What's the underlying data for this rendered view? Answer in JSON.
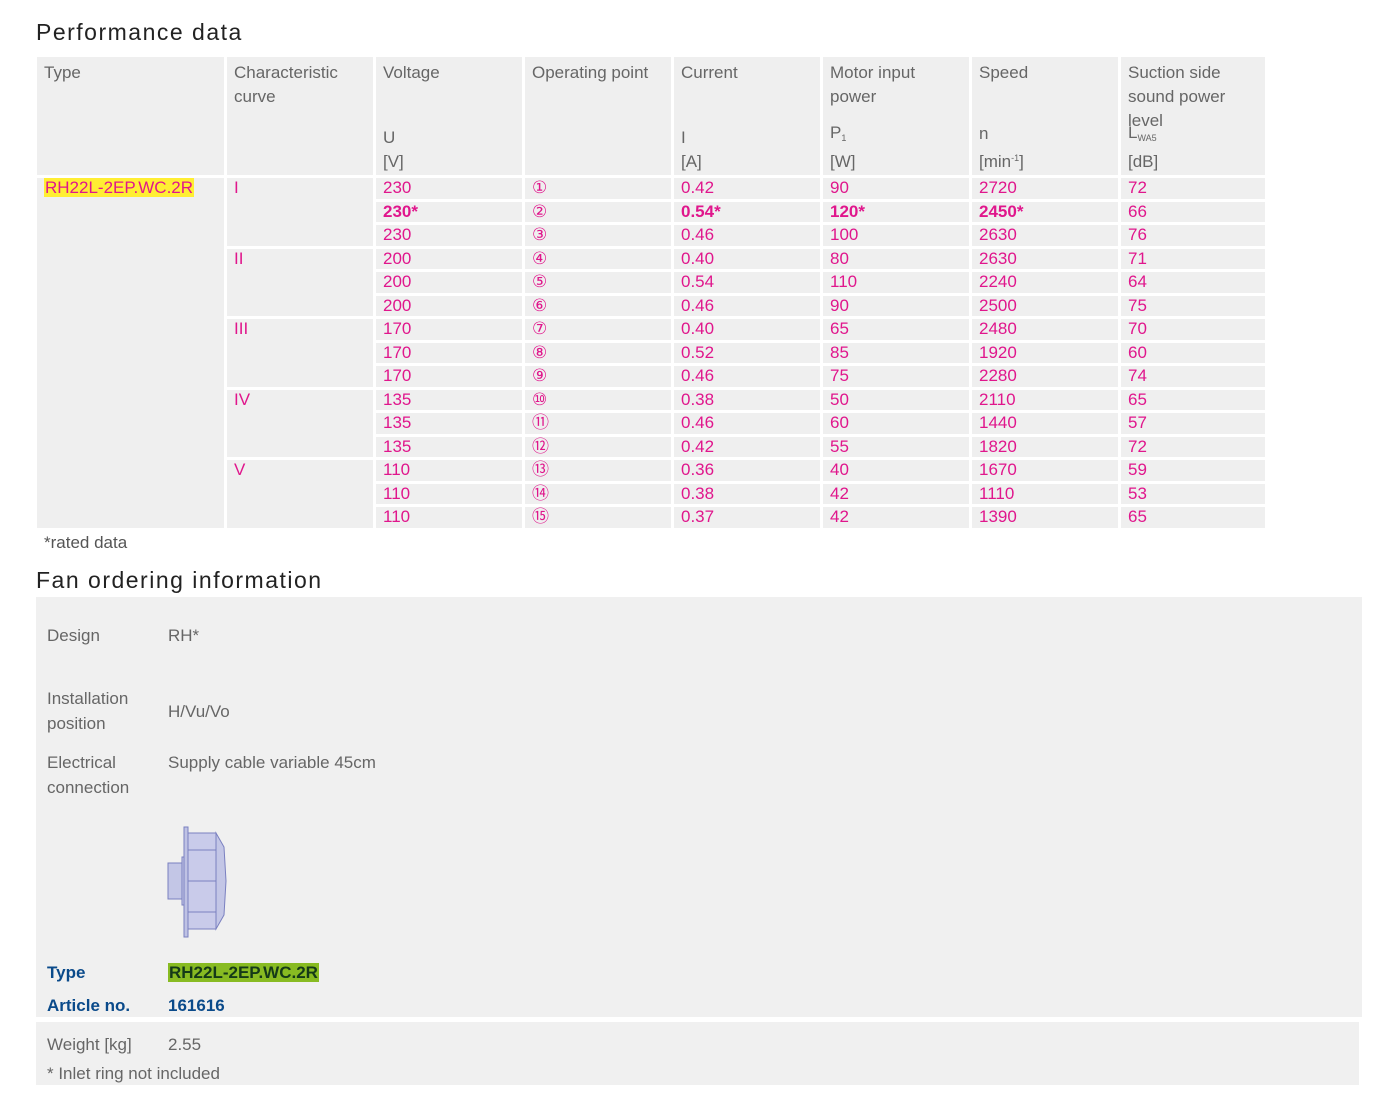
{
  "performance": {
    "title": "Performance data",
    "headers": [
      {
        "label": "Type",
        "unit": ""
      },
      {
        "label": "Characteristic curve",
        "unit": ""
      },
      {
        "label": "Voltage",
        "unit": "[V]",
        "symbol": "U"
      },
      {
        "label": "Operating point",
        "unit": ""
      },
      {
        "label": "Current",
        "unit": "[A]",
        "symbol": "I"
      },
      {
        "label": "Motor input power",
        "unit": "[W]",
        "symbol": "P",
        "symbol_sub": "1"
      },
      {
        "label": "Speed",
        "unit": "[min-1]",
        "symbol": "n",
        "unit_main": "[min",
        "unit_sup": "-1",
        "unit_end": "]"
      },
      {
        "label": "Suction side sound power level",
        "unit": "[dB]",
        "symbol": "L",
        "symbol_sub": "WA5"
      }
    ],
    "type_value": "RH22L-2EP.WC.2R",
    "curves": [
      "I",
      "II",
      "III",
      "IV",
      "V"
    ],
    "rows": [
      {
        "curve": "I",
        "voltage": "230",
        "op": "①",
        "current": "0.42",
        "power": "90",
        "speed": "2720",
        "sound": "72",
        "rated": false
      },
      {
        "curve": "",
        "voltage": "230*",
        "op": "②",
        "current": "0.54*",
        "power": "120*",
        "speed": "2450*",
        "sound": "66",
        "rated": true
      },
      {
        "curve": "",
        "voltage": "230",
        "op": "③",
        "current": "0.46",
        "power": "100",
        "speed": "2630",
        "sound": "76",
        "rated": false
      },
      {
        "curve": "II",
        "voltage": "200",
        "op": "④",
        "current": "0.40",
        "power": "80",
        "speed": "2630",
        "sound": "71",
        "rated": false
      },
      {
        "curve": "",
        "voltage": "200",
        "op": "⑤",
        "current": "0.54",
        "power": "110",
        "speed": "2240",
        "sound": "64",
        "rated": false
      },
      {
        "curve": "",
        "voltage": "200",
        "op": "⑥",
        "current": "0.46",
        "power": "90",
        "speed": "2500",
        "sound": "75",
        "rated": false
      },
      {
        "curve": "III",
        "voltage": "170",
        "op": "⑦",
        "current": "0.40",
        "power": "65",
        "speed": "2480",
        "sound": "70",
        "rated": false
      },
      {
        "curve": "",
        "voltage": "170",
        "op": "⑧",
        "current": "0.52",
        "power": "85",
        "speed": "1920",
        "sound": "60",
        "rated": false
      },
      {
        "curve": "",
        "voltage": "170",
        "op": "⑨",
        "current": "0.46",
        "power": "75",
        "speed": "2280",
        "sound": "74",
        "rated": false
      },
      {
        "curve": "IV",
        "voltage": "135",
        "op": "⑩",
        "current": "0.38",
        "power": "50",
        "speed": "2110",
        "sound": "65",
        "rated": false
      },
      {
        "curve": "",
        "voltage": "135",
        "op": "⑪",
        "current": "0.46",
        "power": "60",
        "speed": "1440",
        "sound": "57",
        "rated": false
      },
      {
        "curve": "",
        "voltage": "135",
        "op": "⑫",
        "current": "0.42",
        "power": "55",
        "speed": "1820",
        "sound": "72",
        "rated": false
      },
      {
        "curve": "V",
        "voltage": "110",
        "op": "⑬",
        "current": "0.36",
        "power": "40",
        "speed": "1670",
        "sound": "59",
        "rated": false
      },
      {
        "curve": "",
        "voltage": "110",
        "op": "⑭",
        "current": "0.38",
        "power": "42",
        "speed": "1110",
        "sound": "53",
        "rated": false
      },
      {
        "curve": "",
        "voltage": "110",
        "op": "⑮",
        "current": "0.37",
        "power": "42",
        "speed": "1390",
        "sound": "65",
        "rated": false
      }
    ],
    "rated_note": "*rated data"
  },
  "ordering": {
    "title": "Fan ordering information",
    "design_label": "Design",
    "design_value": "RH*",
    "installation_label": "Installation position",
    "installation_value": "H/Vu/Vo",
    "electrical_label": "Electrical connection",
    "electrical_value": "Supply cable variable 45cm",
    "type_label": "Type",
    "type_value": "RH22L-2EP.WC.2R",
    "article_label": "Article no.",
    "article_value": "161616",
    "weight_label": "Weight [kg]",
    "weight_value": "2.55",
    "inlet_note": "* Inlet ring not included"
  },
  "colors": {
    "value_text": "#e0168c",
    "type_highlight": "#ffee33",
    "order_highlight": "#88bb22",
    "accent_blue": "#0a4a8a",
    "cell_bg": "#efefef"
  }
}
